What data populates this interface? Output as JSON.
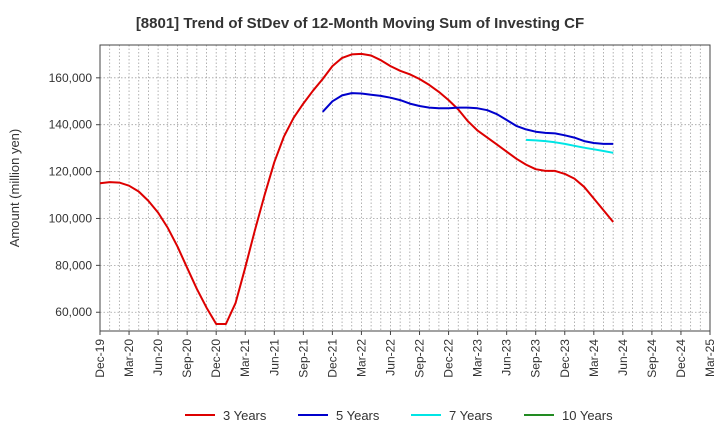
{
  "chart_data": {
    "type": "line",
    "title": "[8801]  Trend of StDev of 12-Month Moving Sum of Investing CF",
    "ylabel": "Amount (million yen)",
    "xlabel": "",
    "ylim": [
      52000,
      174000
    ],
    "yticks": [
      60000,
      80000,
      100000,
      120000,
      140000,
      160000
    ],
    "ytick_labels": [
      "60,000",
      "80,000",
      "100,000",
      "120,000",
      "140,000",
      "160,000"
    ],
    "xtick_labels": [
      "Dec-19",
      "Mar-20",
      "Jun-20",
      "Sep-20",
      "Dec-20",
      "Mar-21",
      "Jun-21",
      "Sep-21",
      "Dec-21",
      "Mar-22",
      "Jun-22",
      "Sep-22",
      "Dec-22",
      "Mar-23",
      "Jun-23",
      "Sep-23",
      "Dec-23",
      "Mar-24",
      "Jun-24",
      "Sep-24",
      "Dec-24",
      "Mar-25"
    ],
    "x_range_months": [
      0,
      63
    ],
    "grid": true,
    "legend_position": "bottom",
    "series": [
      {
        "name": "3 Years",
        "color": "#dd0000",
        "points": [
          [
            0,
            115000
          ],
          [
            1,
            115500
          ],
          [
            2,
            115300
          ],
          [
            3,
            114000
          ],
          [
            4,
            111500
          ],
          [
            5,
            107500
          ],
          [
            6,
            102500
          ],
          [
            7,
            96000
          ],
          [
            8,
            88000
          ],
          [
            9,
            79000
          ],
          [
            10,
            70000
          ],
          [
            11,
            62000
          ],
          [
            12,
            55000
          ],
          [
            13,
            55000
          ],
          [
            14,
            64000
          ],
          [
            15,
            79000
          ],
          [
            16,
            95000
          ],
          [
            17,
            110000
          ],
          [
            18,
            124000
          ],
          [
            19,
            135000
          ],
          [
            20,
            143000
          ],
          [
            21,
            149000
          ],
          [
            22,
            154500
          ],
          [
            23,
            159500
          ],
          [
            24,
            165000
          ],
          [
            25,
            168500
          ],
          [
            26,
            170000
          ],
          [
            27,
            170200
          ],
          [
            28,
            169500
          ],
          [
            29,
            167500
          ],
          [
            30,
            165000
          ],
          [
            31,
            163000
          ],
          [
            32,
            161500
          ],
          [
            33,
            159500
          ],
          [
            34,
            157000
          ],
          [
            35,
            154000
          ],
          [
            36,
            150500
          ],
          [
            37,
            146500
          ],
          [
            38,
            141500
          ],
          [
            39,
            137500
          ],
          [
            40,
            134500
          ],
          [
            41,
            131500
          ],
          [
            42,
            128500
          ],
          [
            43,
            125500
          ],
          [
            44,
            123000
          ],
          [
            45,
            121000
          ],
          [
            46,
            120300
          ],
          [
            47,
            120300
          ],
          [
            48,
            119000
          ],
          [
            49,
            117000
          ],
          [
            50,
            113500
          ],
          [
            51,
            108500
          ],
          [
            52,
            103500
          ],
          [
            53,
            98500
          ]
        ]
      },
      {
        "name": "5 Years",
        "color": "#0000cc",
        "points": [
          [
            23,
            145500
          ],
          [
            24,
            150000
          ],
          [
            25,
            152500
          ],
          [
            26,
            153500
          ],
          [
            27,
            153300
          ],
          [
            28,
            152800
          ],
          [
            29,
            152300
          ],
          [
            30,
            151500
          ],
          [
            31,
            150500
          ],
          [
            32,
            149000
          ],
          [
            33,
            148000
          ],
          [
            34,
            147300
          ],
          [
            35,
            147000
          ],
          [
            36,
            147000
          ],
          [
            37,
            147300
          ],
          [
            38,
            147300
          ],
          [
            39,
            147000
          ],
          [
            40,
            146200
          ],
          [
            41,
            144500
          ],
          [
            42,
            142000
          ],
          [
            43,
            139500
          ],
          [
            44,
            138000
          ],
          [
            45,
            137000
          ],
          [
            46,
            136500
          ],
          [
            47,
            136300
          ],
          [
            48,
            135500
          ],
          [
            49,
            134500
          ],
          [
            50,
            133000
          ],
          [
            51,
            132200
          ],
          [
            52,
            131800
          ],
          [
            53,
            131800
          ]
        ]
      },
      {
        "name": "7 Years",
        "color": "#00e5e5",
        "points": [
          [
            44,
            133500
          ],
          [
            45,
            133300
          ],
          [
            46,
            133000
          ],
          [
            47,
            132500
          ],
          [
            48,
            131800
          ],
          [
            49,
            131000
          ],
          [
            50,
            130200
          ],
          [
            51,
            129500
          ],
          [
            52,
            128800
          ],
          [
            53,
            128000
          ]
        ]
      },
      {
        "name": "10 Years",
        "color": "#228b22",
        "points": []
      }
    ]
  }
}
